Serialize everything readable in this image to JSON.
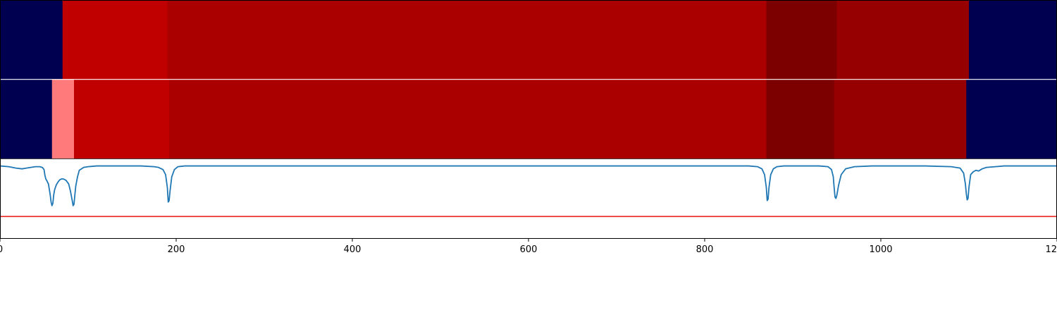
{
  "chart_data": {
    "type": "heatmap",
    "title": "",
    "xlabel": "",
    "ylabel": "",
    "xlim": [
      0,
      1200
    ],
    "x_ticks": [
      0,
      200,
      400,
      600,
      800,
      1000,
      1200
    ],
    "x_tick_labels": [
      "0",
      "200",
      "400",
      "600",
      "800",
      "1000",
      "1200"
    ],
    "grid": false,
    "legend": "none",
    "colors": {
      "navy": "#000050",
      "red_bright": "#c00000",
      "red_main": "#aa0000",
      "red_dark": "#7d0000",
      "red_mid": "#960000",
      "pink": "#ff7a7a",
      "signal_line": "#1f77b4",
      "threshold_line": "#e8231f",
      "row_divider": "#ffffff",
      "frame": "#000000"
    },
    "rows": [
      {
        "segments": [
          {
            "x0": 0,
            "x1": 71,
            "color": "navy"
          },
          {
            "x0": 71,
            "x1": 190,
            "color": "red_bright"
          },
          {
            "x0": 190,
            "x1": 870,
            "color": "red_main"
          },
          {
            "x0": 870,
            "x1": 950,
            "color": "red_dark"
          },
          {
            "x0": 950,
            "x1": 1100,
            "color": "red_mid"
          },
          {
            "x0": 1100,
            "x1": 1200,
            "color": "navy"
          }
        ]
      },
      {
        "segments": [
          {
            "x0": 0,
            "x1": 59,
            "color": "navy"
          },
          {
            "x0": 59,
            "x1": 84,
            "color": "pink"
          },
          {
            "x0": 84,
            "x1": 192,
            "color": "red_bright"
          },
          {
            "x0": 192,
            "x1": 870,
            "color": "red_main"
          },
          {
            "x0": 870,
            "x1": 947,
            "color": "red_dark"
          },
          {
            "x0": 947,
            "x1": 1097,
            "color": "red_mid"
          },
          {
            "x0": 1097,
            "x1": 1200,
            "color": "navy"
          }
        ]
      }
    ],
    "signal_panel": {
      "ylim": [
        -1,
        0.1
      ],
      "threshold": -0.7,
      "x": [
        0,
        10,
        18,
        25,
        30,
        35,
        40,
        45,
        48,
        50,
        51,
        52,
        53,
        55,
        57,
        58,
        59,
        60,
        61,
        62,
        64,
        66,
        68,
        70,
        72,
        75,
        78,
        80,
        82,
        83,
        84,
        85,
        86,
        88,
        90,
        95,
        100,
        110,
        120,
        160,
        175,
        180,
        185,
        188,
        190,
        191,
        192,
        193,
        195,
        198,
        202,
        210,
        220,
        250,
        300,
        400,
        500,
        600,
        700,
        800,
        850,
        860,
        865,
        868,
        870,
        871,
        872,
        873,
        875,
        878,
        882,
        890,
        900,
        930,
        940,
        944,
        946,
        947,
        948,
        949,
        950,
        952,
        955,
        960,
        970,
        990,
        1050,
        1080,
        1090,
        1094,
        1096,
        1097,
        1098,
        1099,
        1100,
        1102,
        1105,
        1108,
        1111,
        1115,
        1120,
        1130,
        1140,
        1200
      ],
      "y": [
        0,
        -0.01,
        -0.03,
        -0.04,
        -0.03,
        -0.02,
        -0.01,
        -0.01,
        -0.02,
        -0.05,
        -0.13,
        -0.18,
        -0.2,
        -0.25,
        -0.4,
        -0.5,
        -0.55,
        -0.52,
        -0.4,
        -0.33,
        -0.26,
        -0.22,
        -0.19,
        -0.18,
        -0.18,
        -0.2,
        -0.25,
        -0.35,
        -0.48,
        -0.55,
        -0.53,
        -0.4,
        -0.28,
        -0.15,
        -0.06,
        -0.02,
        -0.01,
        0,
        0,
        0,
        -0.01,
        -0.02,
        -0.05,
        -0.12,
        -0.3,
        -0.5,
        -0.48,
        -0.35,
        -0.15,
        -0.05,
        -0.01,
        0,
        0,
        0,
        0,
        0,
        0,
        0,
        0,
        0,
        0,
        -0.01,
        -0.04,
        -0.12,
        -0.3,
        -0.48,
        -0.46,
        -0.3,
        -0.12,
        -0.04,
        -0.01,
        0,
        0,
        0,
        -0.01,
        -0.05,
        -0.15,
        -0.3,
        -0.43,
        -0.45,
        -0.41,
        -0.27,
        -0.12,
        -0.04,
        -0.01,
        0,
        0,
        -0.01,
        -0.03,
        -0.1,
        -0.25,
        -0.38,
        -0.47,
        -0.45,
        -0.3,
        -0.12,
        -0.08,
        -0.06,
        -0.07,
        -0.04,
        -0.02,
        -0.01,
        0,
        0
      ]
    }
  }
}
